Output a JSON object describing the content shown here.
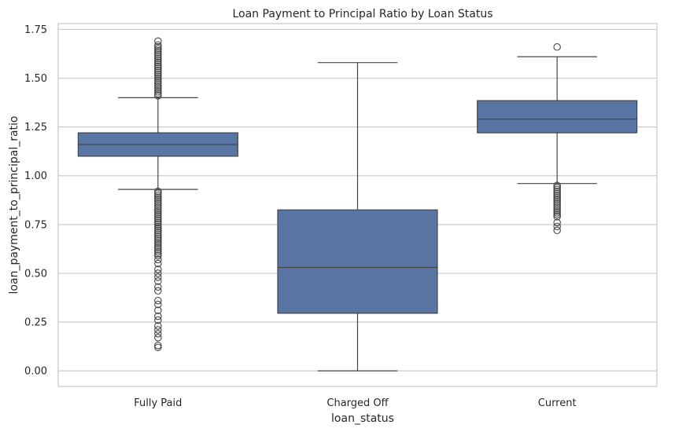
{
  "chart_data": {
    "type": "box",
    "title": "Loan Payment to Principal Ratio by Loan Status",
    "xlabel": "loan_status",
    "ylabel": "loan_payment_to_principal_ratio",
    "ylim": [
      -0.08,
      1.78
    ],
    "yticks": [
      0.0,
      0.25,
      0.5,
      0.75,
      1.0,
      1.25,
      1.5,
      1.75
    ],
    "ytick_labels": [
      "0.00",
      "0.25",
      "0.50",
      "0.75",
      "1.00",
      "1.25",
      "1.50",
      "1.75"
    ],
    "grid": "horizontal",
    "box_color": "#5875a4",
    "line_color": "#444444",
    "categories": [
      "Fully Paid",
      "Charged Off",
      "Current"
    ],
    "boxes": [
      {
        "category": "Fully Paid",
        "whisker_low": 0.93,
        "q1": 1.1,
        "median": 1.16,
        "q3": 1.22,
        "whisker_high": 1.4,
        "outliers": [
          1.41,
          1.42,
          1.43,
          1.44,
          1.45,
          1.46,
          1.47,
          1.48,
          1.49,
          1.5,
          1.51,
          1.52,
          1.53,
          1.54,
          1.55,
          1.56,
          1.57,
          1.58,
          1.59,
          1.6,
          1.61,
          1.62,
          1.63,
          1.64,
          1.65,
          1.66,
          1.67,
          1.69,
          0.92,
          0.91,
          0.9,
          0.89,
          0.88,
          0.87,
          0.86,
          0.85,
          0.84,
          0.83,
          0.82,
          0.81,
          0.8,
          0.79,
          0.78,
          0.77,
          0.76,
          0.75,
          0.74,
          0.73,
          0.72,
          0.71,
          0.7,
          0.69,
          0.68,
          0.67,
          0.66,
          0.65,
          0.64,
          0.63,
          0.62,
          0.61,
          0.6,
          0.59,
          0.57,
          0.55,
          0.52,
          0.5,
          0.48,
          0.46,
          0.43,
          0.41,
          0.36,
          0.34,
          0.31,
          0.28,
          0.26,
          0.23,
          0.21,
          0.19,
          0.17,
          0.13,
          0.12
        ]
      },
      {
        "category": "Charged Off",
        "whisker_low": 0.0,
        "q1": 0.295,
        "median": 0.53,
        "q3": 0.825,
        "whisker_high": 1.58,
        "outliers": []
      },
      {
        "category": "Current",
        "whisker_low": 0.96,
        "q1": 1.22,
        "median": 1.29,
        "q3": 1.385,
        "whisker_high": 1.61,
        "outliers": [
          1.66,
          0.95,
          0.94,
          0.93,
          0.92,
          0.91,
          0.9,
          0.89,
          0.88,
          0.87,
          0.86,
          0.85,
          0.84,
          0.83,
          0.82,
          0.81,
          0.8,
          0.79,
          0.76,
          0.74,
          0.72
        ]
      }
    ]
  }
}
